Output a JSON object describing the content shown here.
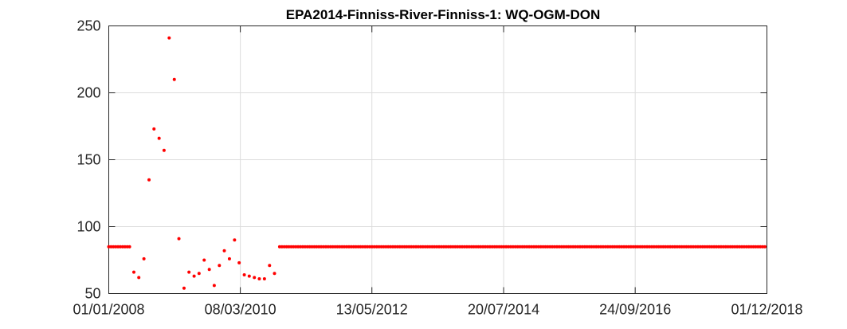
{
  "chart_data": {
    "type": "scatter",
    "title": "EPA2014-Finniss-River-Finniss-1: WQ-OGM-DON",
    "xlabel": "",
    "ylabel": "",
    "x_range": [
      "01/01/2008",
      "01/12/2018"
    ],
    "ylim": [
      50,
      250
    ],
    "x_tick_labels": [
      "01/01/2008",
      "08/03/2010",
      "13/05/2012",
      "20/07/2014",
      "24/09/2016",
      "01/12/2018"
    ],
    "y_tick_labels": [
      "50",
      "100",
      "150",
      "200",
      "250"
    ],
    "grid": true,
    "legend": "none",
    "marker_color": "#ff0000",
    "series": [
      {
        "points": [
          [
            "01/01/2008",
            85
          ],
          [
            "15/01/2008",
            85
          ],
          [
            "29/01/2008",
            85
          ],
          [
            "12/02/2008",
            85
          ],
          [
            "26/02/2008",
            85
          ],
          [
            "11/03/2008",
            85
          ],
          [
            "25/03/2008",
            85
          ],
          [
            "08/04/2008",
            85
          ],
          [
            "22/04/2008",
            85
          ],
          [
            "06/05/2008",
            85
          ],
          [
            "01/06/2008",
            66
          ],
          [
            "01/07/2008",
            62
          ],
          [
            "01/08/2008",
            76
          ],
          [
            "01/09/2008",
            135
          ],
          [
            "01/10/2008",
            173
          ],
          [
            "01/11/2008",
            166
          ],
          [
            "01/12/2008",
            157
          ],
          [
            "01/01/2009",
            241
          ],
          [
            "01/02/2009",
            210
          ],
          [
            "01/03/2009",
            91
          ],
          [
            "01/04/2009",
            54
          ],
          [
            "01/05/2009",
            66
          ],
          [
            "01/06/2009",
            63
          ],
          [
            "01/07/2009",
            65
          ],
          [
            "01/08/2009",
            75
          ],
          [
            "01/09/2009",
            68
          ],
          [
            "01/10/2009",
            56
          ],
          [
            "01/11/2009",
            71
          ],
          [
            "01/12/2009",
            82
          ],
          [
            "01/01/2010",
            76
          ],
          [
            "01/02/2010",
            90
          ],
          [
            "01/03/2010",
            73
          ],
          [
            "01/04/2010",
            64
          ],
          [
            "01/05/2010",
            63
          ],
          [
            "01/06/2010",
            62
          ],
          [
            "01/07/2010",
            61
          ],
          [
            "01/08/2010",
            61
          ],
          [
            "01/09/2010",
            71
          ],
          [
            "01/10/2010",
            65
          ]
        ],
        "constant_segment": {
          "from": "01/11/2010",
          "to": "01/12/2018",
          "interval_days": 14,
          "value": 85
        }
      }
    ]
  }
}
